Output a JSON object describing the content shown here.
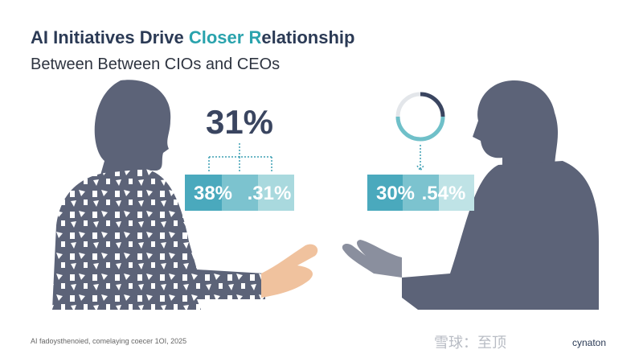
{
  "header": {
    "title": [
      "AI Initiatives Drive ",
      "Closer R",
      "elationship"
    ],
    "subtitle": "Between Between CIOs and CEOs"
  },
  "left": {
    "headline": "31%",
    "boxes": [
      "38%",
      ".31%"
    ]
  },
  "right": {
    "boxes": [
      "30%",
      ".54%"
    ]
  },
  "footer": {
    "source": "AI fadoysthenoied, comelaying coecer 1OI, 2025"
  },
  "watermark": {
    "site": "雪球：至顶",
    "brand": "cynaton"
  }
}
